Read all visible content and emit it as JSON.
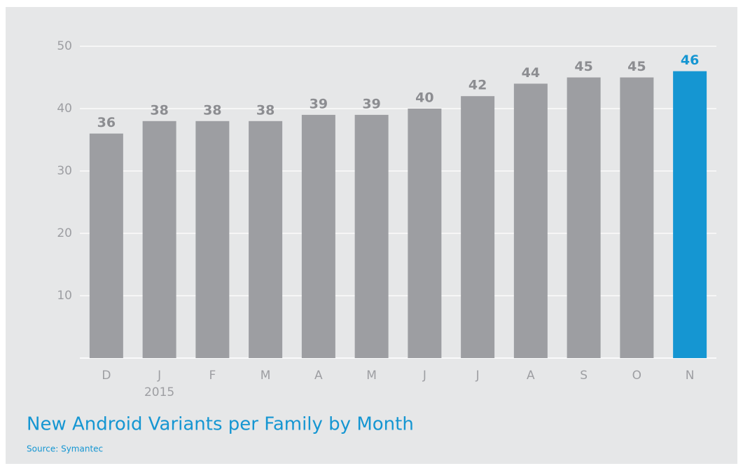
{
  "chart_data": {
    "type": "bar",
    "title": "New Android Variants per Family by Month",
    "source": "Source: Symantec",
    "categories": [
      "D",
      "J",
      "F",
      "M",
      "A",
      "M",
      "J",
      "J",
      "A",
      "S",
      "O",
      "N"
    ],
    "category_sublabels": [
      null,
      "2015",
      null,
      null,
      null,
      null,
      null,
      null,
      null,
      null,
      null,
      null
    ],
    "values": [
      36,
      38,
      38,
      38,
      39,
      39,
      40,
      42,
      44,
      45,
      45,
      46
    ],
    "colors": [
      "#9d9ea2",
      "#9d9ea2",
      "#9d9ea2",
      "#9d9ea2",
      "#9d9ea2",
      "#9d9ea2",
      "#9d9ea2",
      "#9d9ea2",
      "#9d9ea2",
      "#9d9ea2",
      "#9d9ea2",
      "#1596d2"
    ],
    "ylim": [
      0,
      50
    ],
    "yticks": [
      10,
      20,
      30,
      40,
      50
    ],
    "grid": true
  }
}
